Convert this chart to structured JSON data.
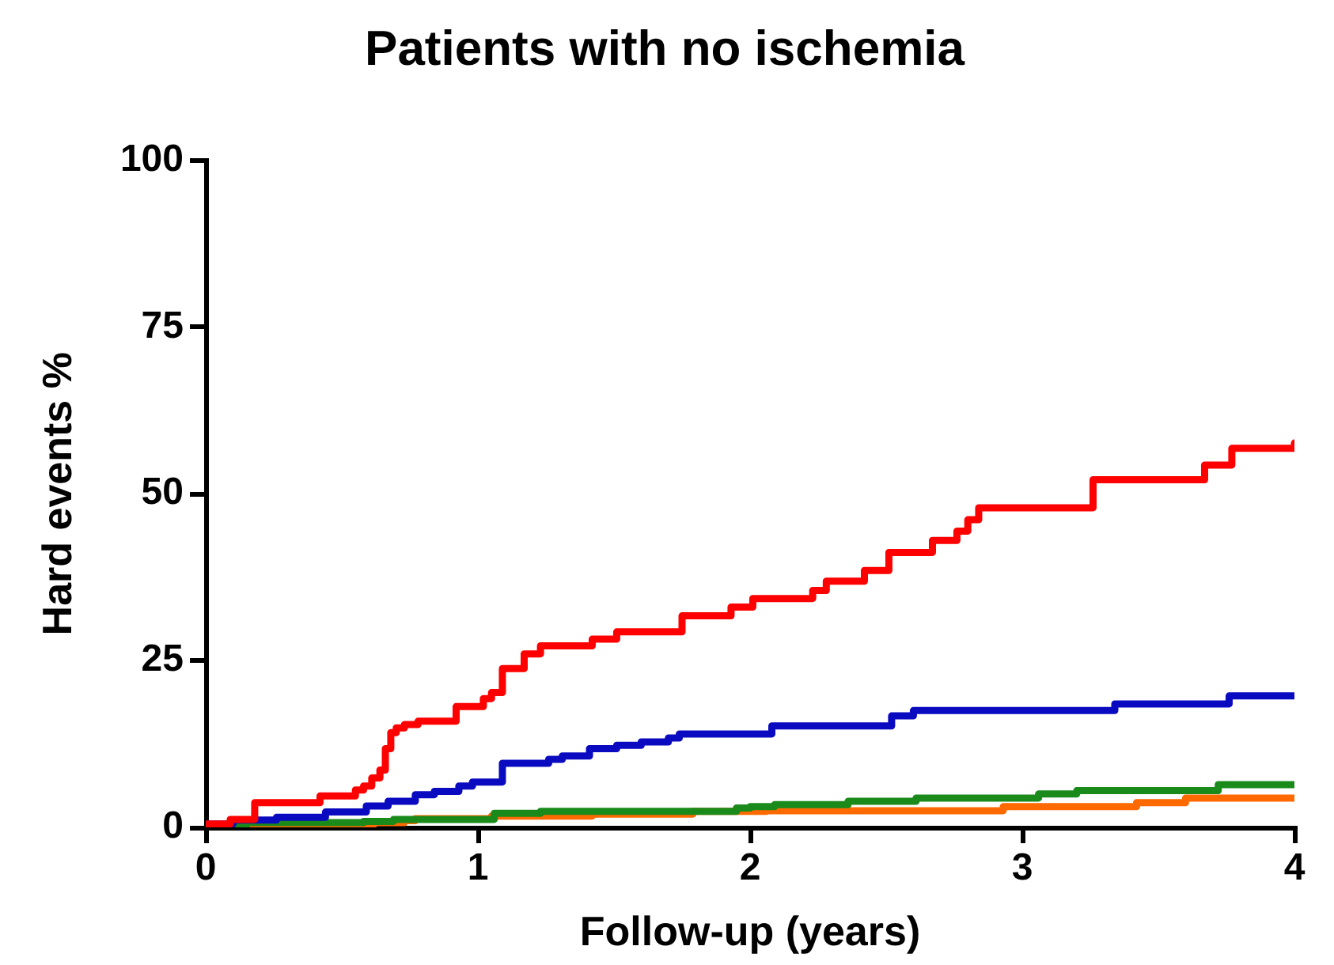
{
  "chart_data": {
    "type": "step",
    "title": "Patients with no ischemia",
    "xlabel": "Follow-up (years)",
    "ylabel": "Hard events %",
    "xlim": [
      0,
      4
    ],
    "xticks": [
      0,
      1,
      2,
      3,
      4
    ],
    "ylim": [
      0,
      100
    ],
    "yticks": [
      0,
      25,
      50,
      75,
      100
    ],
    "marker": "none",
    "line_style": "solid",
    "series": [
      {
        "color": "#ff0000",
        "x": [
          0,
          0.09,
          0.18,
          0.42,
          0.55,
          0.58,
          0.61,
          0.64,
          0.66,
          0.68,
          0.7,
          0.73,
          0.78,
          0.92,
          1.02,
          1.05,
          1.09,
          1.17,
          1.23,
          1.42,
          1.51,
          1.75,
          1.93,
          2.01,
          2.23,
          2.28,
          2.42,
          2.51,
          2.67,
          2.76,
          2.8,
          2.84,
          3.26,
          3.67,
          3.77,
          4
        ],
        "values": [
          0.5,
          1.2,
          3.7,
          4.7,
          5.6,
          6.2,
          7.4,
          8.6,
          11.8,
          14.2,
          14.9,
          15.4,
          15.9,
          18.1,
          19.3,
          20.2,
          23.8,
          26,
          27.2,
          28.2,
          29.3,
          31.7,
          33,
          34.3,
          35.5,
          36.9,
          38.5,
          41.2,
          43,
          44.4,
          46.1,
          47.9,
          52.1,
          54.3,
          56.8,
          57.6
        ]
      },
      {
        "color": "#0a0ac0",
        "x": [
          0,
          0.1,
          0.26,
          0.44,
          0.59,
          0.67,
          0.77,
          0.84,
          0.93,
          0.98,
          1.09,
          1.26,
          1.31,
          1.41,
          1.51,
          1.6,
          1.7,
          1.74,
          2.08,
          2.52,
          2.6,
          3.34,
          3.76,
          4
        ],
        "values": [
          0.5,
          1.1,
          1.5,
          2.3,
          3.2,
          3.9,
          4.9,
          5.4,
          6.2,
          6.8,
          9.6,
          10.2,
          10.7,
          11.8,
          12.3,
          12.8,
          13.4,
          14,
          15.2,
          16.7,
          17.5,
          18.5,
          19.7,
          19.7
        ]
      },
      {
        "color": "#1a8a1a",
        "x": [
          0,
          0.15,
          0.58,
          0.69,
          1.06,
          1.23,
          1.95,
          2,
          2.09,
          2.36,
          2.61,
          3.06,
          3.2,
          3.72,
          4
        ],
        "values": [
          0.3,
          0.7,
          0.9,
          1.2,
          2.1,
          2.4,
          2.9,
          3.1,
          3.4,
          3.9,
          4.4,
          5,
          5.5,
          6.4,
          6.4
        ]
      },
      {
        "color": "#ff6a00",
        "x": [
          0,
          0.48,
          0.62,
          0.73,
          0.77,
          1.05,
          1.42,
          1.79,
          2.06,
          2.93,
          3.42,
          3.6,
          4
        ],
        "values": [
          0.2,
          0.5,
          0.7,
          1,
          1.3,
          1.7,
          2,
          2.4,
          2.5,
          3.1,
          3.7,
          4.4,
          4.4
        ]
      }
    ]
  }
}
